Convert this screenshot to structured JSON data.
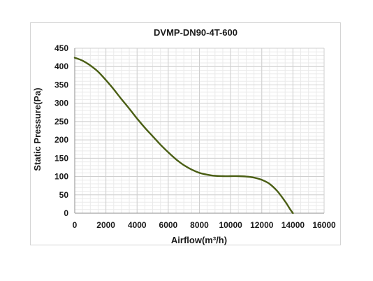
{
  "chart_data": {
    "type": "line",
    "title": "DVMP-DN90-4T-600",
    "xlabel": "Airflow(m³/h)",
    "ylabel": "Static Pressure(Pa)",
    "xlim": [
      0,
      16000
    ],
    "ylim": [
      0,
      450
    ],
    "x_ticks": [
      0,
      2000,
      4000,
      6000,
      8000,
      10000,
      12000,
      14000,
      16000
    ],
    "y_ticks": [
      0,
      50,
      100,
      150,
      200,
      250,
      300,
      350,
      400,
      450
    ],
    "grid": true,
    "minor_grid": true,
    "legend": "none",
    "series": [
      {
        "color": "#4a5e14",
        "x": [
          0,
          500,
          1000,
          1500,
          2000,
          2500,
          3000,
          3500,
          4000,
          4500,
          5000,
          5500,
          6000,
          6500,
          7000,
          7500,
          8000,
          8500,
          9000,
          9500,
          10000,
          10500,
          11000,
          11500,
          12000,
          12500,
          13000,
          13500,
          13800,
          14000
        ],
        "y": [
          424,
          416,
          403,
          386,
          363,
          338,
          311,
          285,
          258,
          233,
          210,
          187,
          166,
          147,
          131,
          119,
          110,
          105,
          102,
          101,
          101,
          101,
          100,
          97,
          91,
          80,
          60,
          32,
          12,
          0
        ]
      }
    ]
  }
}
